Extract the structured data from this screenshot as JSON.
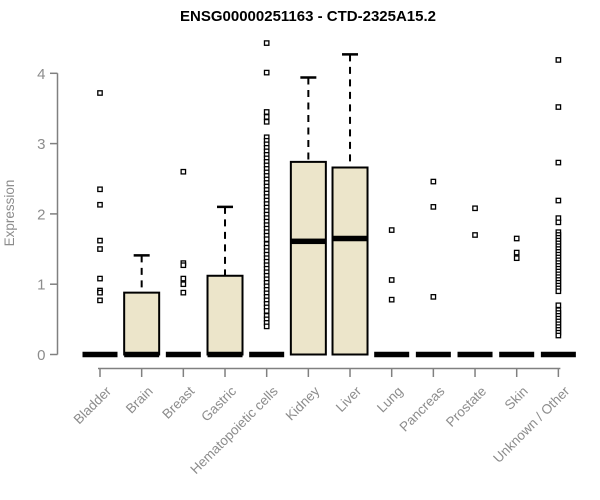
{
  "chart_data": {
    "type": "boxplot",
    "title": "ENSG00000251163 - CTD-2325A15.2",
    "xlabel": "",
    "ylabel": "Expression",
    "ylim": [
      0,
      4.45
    ],
    "y_ticks": [
      0,
      1,
      2,
      3,
      4
    ],
    "grid": false,
    "legend": false,
    "x_tick_rotation_deg": 45,
    "colors": {
      "box_fill": "#ece5ca",
      "box_stroke": "#000000",
      "median": "#000000",
      "axis": "#808080",
      "tick_label": "#8c8c8c",
      "title": "#000000",
      "outlier_fill": "#ffffff",
      "background": "#ffffff"
    },
    "categories": [
      "Bladder",
      "Brain",
      "Breast",
      "Gastric",
      "Hematopoietic cells",
      "Kidney",
      "Liver",
      "Lung",
      "Pancreas",
      "Prostate",
      "Skin",
      "Unknown / Other"
    ],
    "series": [
      {
        "category": "Bladder",
        "q1": 0,
        "median": 0,
        "q3": 0,
        "whisker_low": 0,
        "whisker_high": 0,
        "outliers": [
          3.72,
          2.35,
          2.13,
          1.62,
          1.5,
          1.08,
          0.91,
          0.88,
          0.77
        ]
      },
      {
        "category": "Brain",
        "q1": 0,
        "median": 0,
        "q3": 0.88,
        "whisker_low": 0,
        "whisker_high": 1.41,
        "outliers": []
      },
      {
        "category": "Breast",
        "q1": 0,
        "median": 0,
        "q3": 0,
        "whisker_low": 0,
        "whisker_high": 0,
        "outliers": [
          2.6,
          1.3,
          1.27,
          1.08,
          1.0,
          0.88
        ]
      },
      {
        "category": "Gastric",
        "q1": 0,
        "median": 0,
        "q3": 1.12,
        "whisker_low": 0,
        "whisker_high": 2.1,
        "outliers": []
      },
      {
        "category": "Hematopoietic cells",
        "q1": 0,
        "median": 0,
        "q3": 0,
        "whisker_low": 0,
        "whisker_high": 0,
        "outliers": [
          4.43,
          4.01,
          3.45,
          3.38,
          3.31,
          3.09,
          3.04,
          2.99,
          2.94,
          2.89,
          2.84,
          2.79,
          2.74,
          2.69,
          2.64,
          2.59,
          2.54,
          2.49,
          2.44,
          2.39,
          2.34,
          2.29,
          2.24,
          2.19,
          2.14,
          2.09,
          2.04,
          1.99,
          1.94,
          1.89,
          1.84,
          1.79,
          1.74,
          1.69,
          1.64,
          1.57,
          1.52,
          1.47,
          1.42,
          1.37,
          1.32,
          1.27,
          1.22,
          1.17,
          1.12,
          1.07,
          1.02,
          0.97,
          0.92,
          0.87,
          0.82,
          0.77,
          0.72,
          0.67,
          0.62,
          0.55,
          0.5,
          0.45,
          0.4
        ]
      },
      {
        "category": "Kidney",
        "q1": 0,
        "median": 1.61,
        "q3": 2.74,
        "whisker_low": 0,
        "whisker_high": 3.94,
        "outliers": []
      },
      {
        "category": "Liver",
        "q1": 0,
        "median": 1.65,
        "q3": 2.66,
        "whisker_low": 0,
        "whisker_high": 4.27,
        "outliers": []
      },
      {
        "category": "Lung",
        "q1": 0,
        "median": 0,
        "q3": 0,
        "whisker_low": 0,
        "whisker_high": 0,
        "outliers": [
          1.77,
          1.06,
          0.78
        ]
      },
      {
        "category": "Pancreas",
        "q1": 0,
        "median": 0,
        "q3": 0,
        "whisker_low": 0,
        "whisker_high": 0,
        "outliers": [
          2.46,
          2.1,
          0.82
        ]
      },
      {
        "category": "Prostate",
        "q1": 0,
        "median": 0,
        "q3": 0,
        "whisker_low": 0,
        "whisker_high": 0,
        "outliers": [
          2.08,
          1.7
        ]
      },
      {
        "category": "Skin",
        "q1": 0,
        "median": 0,
        "q3": 0,
        "whisker_low": 0,
        "whisker_high": 0,
        "outliers": [
          1.65,
          1.45,
          1.37
        ]
      },
      {
        "category": "Unknown / Other",
        "q1": 0,
        "median": 0,
        "q3": 0,
        "whisker_low": 0,
        "whisker_high": 0,
        "outliers": [
          4.19,
          3.52,
          2.73,
          2.19,
          1.94,
          1.88,
          1.74,
          1.7,
          1.66,
          1.62,
          1.58,
          1.54,
          1.5,
          1.46,
          1.42,
          1.38,
          1.34,
          1.3,
          1.26,
          1.22,
          1.18,
          1.14,
          1.1,
          1.06,
          1.02,
          0.98,
          0.94,
          0.9,
          0.7,
          0.63,
          0.59,
          0.55,
          0.51,
          0.47,
          0.43,
          0.39,
          0.35,
          0.31,
          0.27
        ]
      }
    ]
  }
}
